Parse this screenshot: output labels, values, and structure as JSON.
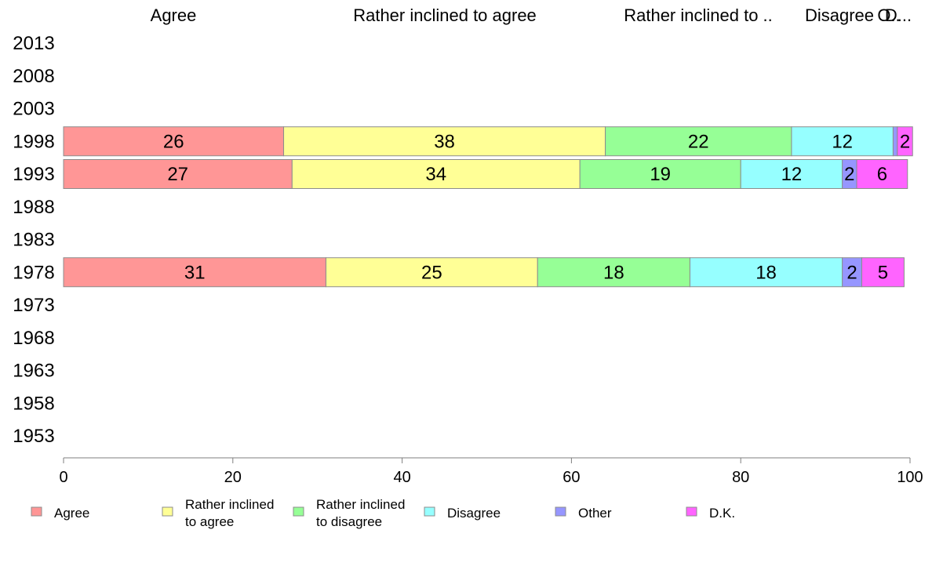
{
  "chart_data": {
    "type": "bar",
    "orientation": "horizontal",
    "stacked": true,
    "categories": [
      "2013",
      "2008",
      "2003",
      "1998",
      "1993",
      "1988",
      "1983",
      "1978",
      "1973",
      "1968",
      "1963",
      "1958",
      "1953"
    ],
    "top_labels": [
      "Agree",
      "Rather inclined to agree",
      "Rather inclined to ..",
      "Disagree",
      "O..",
      "D..."
    ],
    "series": [
      {
        "name": "Agree",
        "legend_lines": [
          "Agree"
        ],
        "color": "#ff9696",
        "values": [
          null,
          null,
          null,
          26,
          27,
          null,
          null,
          31,
          null,
          null,
          null,
          null,
          null
        ]
      },
      {
        "name": "Rather inclined to agree",
        "legend_lines": [
          "Rather inclined",
          "to agree"
        ],
        "color": "#ffff96",
        "values": [
          null,
          null,
          null,
          38,
          34,
          null,
          null,
          25,
          null,
          null,
          null,
          null,
          null
        ]
      },
      {
        "name": "Rather inclined to disagree",
        "legend_lines": [
          "Rather inclined",
          "to disagree"
        ],
        "color": "#96ff96",
        "values": [
          null,
          null,
          null,
          22,
          19,
          null,
          null,
          18,
          null,
          null,
          null,
          null,
          null
        ]
      },
      {
        "name": "Disagree",
        "legend_lines": [
          "Disagree"
        ],
        "color": "#96ffff",
        "values": [
          null,
          null,
          null,
          12,
          12,
          null,
          null,
          18,
          null,
          null,
          null,
          null,
          null
        ]
      },
      {
        "name": "Other",
        "legend_lines": [
          "Other"
        ],
        "color": "#9696ff",
        "values": [
          null,
          null,
          null,
          0.5,
          1.7,
          null,
          null,
          2.3,
          null,
          null,
          null,
          null,
          null
        ]
      },
      {
        "name": "D.K.",
        "legend_lines": [
          "D.K."
        ],
        "color": "#ff64ff",
        "values": [
          null,
          null,
          null,
          1.8,
          6,
          null,
          null,
          5,
          null,
          null,
          null,
          null,
          null
        ]
      }
    ],
    "data_labels": [
      {
        "year": "1998",
        "labels": [
          "26",
          "38",
          "22",
          "12",
          "",
          "2"
        ]
      },
      {
        "year": "1993",
        "labels": [
          "27",
          "34",
          "19",
          "12",
          "2",
          "6"
        ]
      },
      {
        "year": "1978",
        "labels": [
          "31",
          "25",
          "18",
          "18",
          "2",
          "5"
        ]
      }
    ],
    "xlim": [
      0,
      100
    ],
    "xticks": [
      "0",
      "20",
      "40",
      "60",
      "80",
      "100"
    ],
    "grid": false,
    "legend_position": "bottom"
  }
}
